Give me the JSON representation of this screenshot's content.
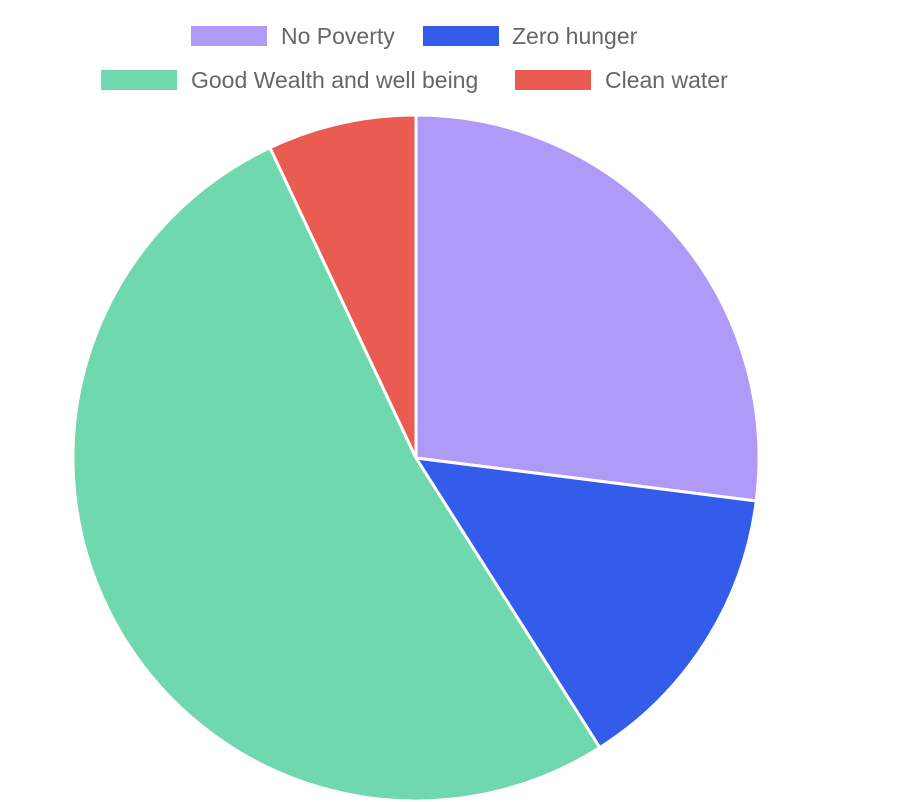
{
  "chart_data": {
    "type": "pie",
    "categories": [
      "No Poverty",
      "Zero hunger",
      "Good Wealth and well being",
      "Clean water"
    ],
    "values": [
      27,
      14,
      52,
      7
    ],
    "colors": [
      "#B09AF8",
      "#345CEB",
      "#70D8AE",
      "#EA5C52"
    ],
    "legend_position": "top",
    "title": ""
  }
}
